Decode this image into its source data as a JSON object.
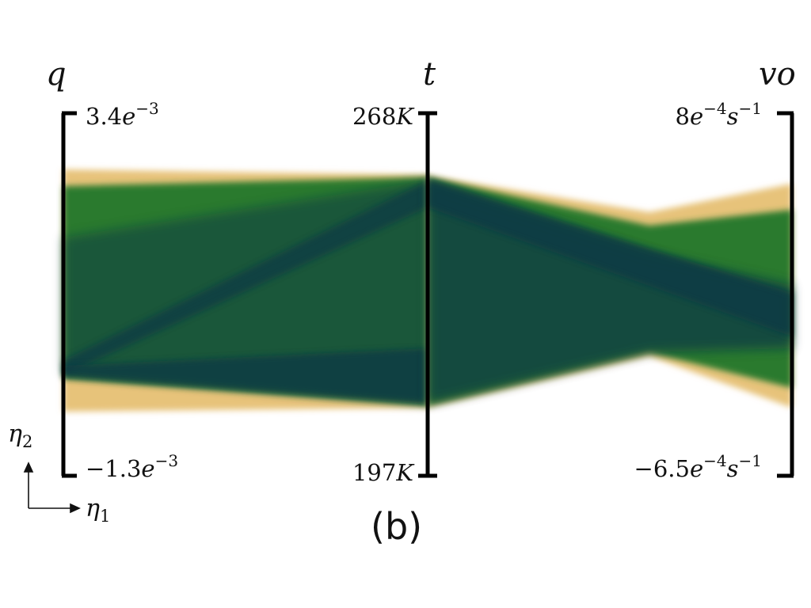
{
  "chart_data": {
    "type": "parallel-coordinates",
    "title": "",
    "panel_label": "(b)",
    "axes": [
      {
        "name": "q",
        "max_label": {
          "mant": "3.4",
          "exp": "−3",
          "unit": ""
        },
        "min_label": {
          "mant": "−1.3",
          "exp": "−3",
          "unit": ""
        }
      },
      {
        "name": "t",
        "max_label": {
          "mant": "268",
          "exp": "",
          "unit": "K"
        },
        "min_label": {
          "mant": "197",
          "exp": "",
          "unit": "K"
        }
      },
      {
        "name": "vo",
        "max_label": {
          "mant": "8",
          "exp": "−4",
          "unit": "s"
        },
        "min_label": {
          "mant": "−6.5",
          "exp": "−4",
          "unit": "s"
        }
      }
    ],
    "projection_labels": {
      "eta1": "η",
      "eta1_sub": "1",
      "eta2": "η",
      "eta2_sub": "2"
    },
    "colors": {
      "outer": "#e7c37a",
      "mid": "#2a7a2e",
      "core": "#0b3a45",
      "axis": "#000000"
    }
  }
}
